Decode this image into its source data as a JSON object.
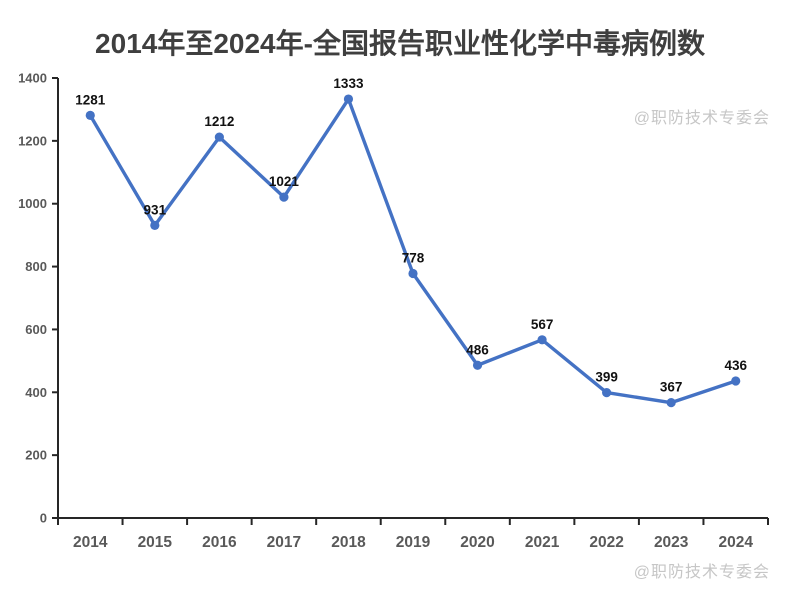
{
  "title": "2014年至2024年-全国报告职业性化学中毒病例数",
  "watermark": "@职防技术专委会",
  "colors": {
    "line": "#4472C4",
    "axis": "#262626",
    "tick_label": "#595959",
    "data_label": "#111111",
    "title": "#3f3f3f",
    "watermark": "#c6c6c6"
  },
  "chart_data": {
    "type": "line",
    "title": "2014年至2024年-全国报告职业性化学中毒病例数",
    "categories": [
      "2014",
      "2015",
      "2016",
      "2017",
      "2018",
      "2019",
      "2020",
      "2021",
      "2022",
      "2023",
      "2024"
    ],
    "values": [
      1281,
      931,
      1212,
      1021,
      1333,
      778,
      486,
      567,
      399,
      367,
      436
    ],
    "xlabel": "",
    "ylabel": "",
    "ylim": [
      0,
      1400
    ],
    "ytick_step": 200,
    "yticks": [
      0,
      200,
      400,
      600,
      800,
      1000,
      1200,
      1400
    ],
    "grid": false,
    "legend": "none",
    "marker": "circle",
    "data_labels": true,
    "annotations": [
      "@职防技术专委会 (top-right)",
      "@职防技术专委会 (bottom-right)"
    ]
  }
}
